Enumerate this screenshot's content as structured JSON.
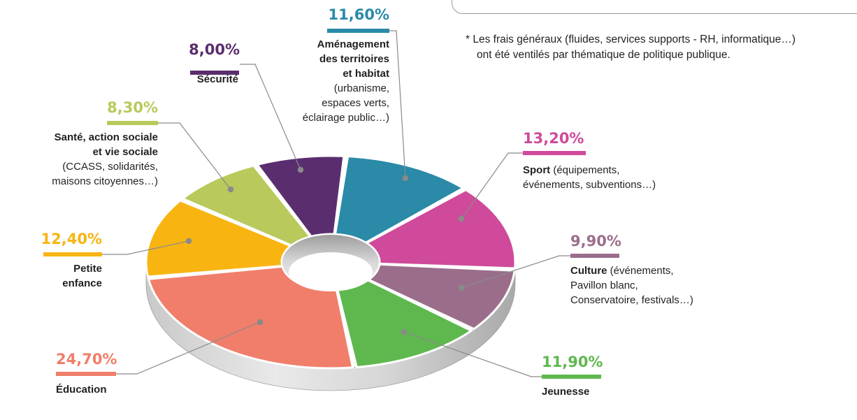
{
  "chart_data": {
    "type": "pie",
    "style": "3d-donut",
    "unit": "%",
    "slices": [
      {
        "id": "securite",
        "value": 8.0,
        "display": "8,00%",
        "color": "#5a2e6e",
        "label": [
          "Sécurité"
        ],
        "bold_lines": 1
      },
      {
        "id": "amenagement",
        "value": 11.6,
        "display": "11,60%",
        "color": "#2a8aa8",
        "label": [
          "Aménagement",
          "des territoires",
          "et habitat",
          "(urbanisme,",
          "espaces verts,",
          "éclairage public…)"
        ],
        "bold_lines": 3
      },
      {
        "id": "sport",
        "value": 13.2,
        "display": "13,20%",
        "color": "#cf4a9b",
        "label": [
          "Sport (équipements,",
          "événements, subventions…)"
        ],
        "bold_lines": 0,
        "bold_prefix": "Sport"
      },
      {
        "id": "culture",
        "value": 9.9,
        "display": "9,90%",
        "color": "#9a6e8a",
        "label": [
          "Culture (événements,",
          "Pavillon blanc,",
          "Conservatoire, festivals…)"
        ],
        "bold_lines": 0,
        "bold_prefix": "Culture"
      },
      {
        "id": "jeunesse",
        "value": 11.9,
        "display": "11,90%",
        "color": "#5fb84e",
        "label": [
          "Jeunesse"
        ],
        "bold_lines": 1
      },
      {
        "id": "education",
        "value": 24.7,
        "display": "24,70%",
        "color": "#f07e6a",
        "label": [
          "Éducation"
        ],
        "bold_lines": 1
      },
      {
        "id": "petite_enfance",
        "value": 12.4,
        "display": "12,40%",
        "color": "#f8b512",
        "label": [
          "Petite",
          "enfance"
        ],
        "bold_lines": 2
      },
      {
        "id": "sante",
        "value": 8.3,
        "display": "8,30%",
        "color": "#b9c95b",
        "label": [
          "Santé, action sociale",
          "et vie sociale",
          "(CCASS, solidarités,",
          "maisons citoyennes…)"
        ],
        "bold_lines": 2
      }
    ]
  },
  "footnote": {
    "line1": "* Les frais généraux (fluides, services supports - RH, informatique…)",
    "line2": "ont été ventilés par thématique de politique publique."
  }
}
